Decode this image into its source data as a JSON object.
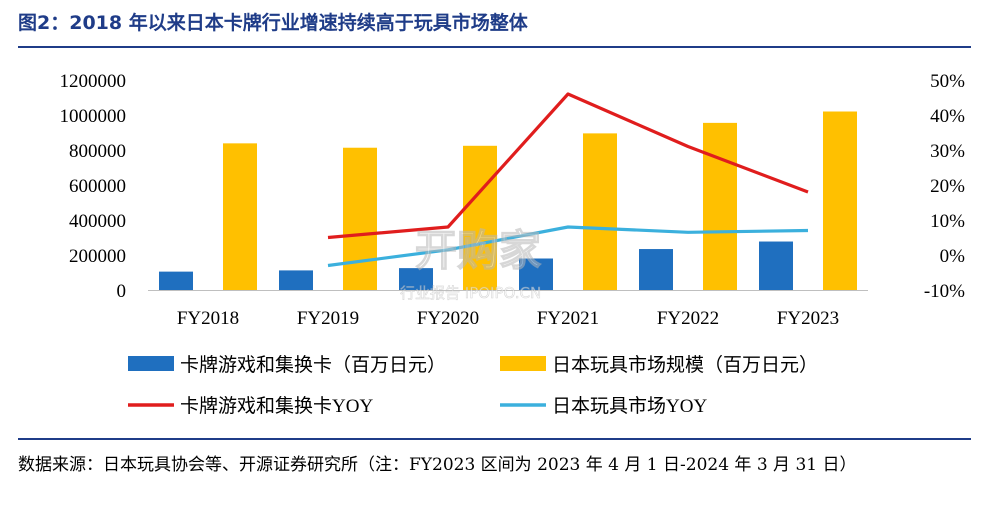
{
  "header": {
    "title": "图2：2018 年以来日本卡牌行业增速持续高于玩具市场整体"
  },
  "footer": {
    "source": "数据来源：日本玩具协会等、开源证券研究所（注：FY2023 区间为 2023 年 4 月 1 日-2024 年 3 月 31 日）"
  },
  "watermark": {
    "main": "开购家",
    "sub": "行业报告 IPOIPO.CN"
  },
  "colors": {
    "card_bar": "#1f6fbf",
    "toy_bar": "#ffc000",
    "card_yoy": "#e01d1d",
    "toy_yoy": "#3bb0dd"
  },
  "chart_data": {
    "type": "bar",
    "categories": [
      "FY2018",
      "FY2019",
      "FY2020",
      "FY2021",
      "FY2022",
      "FY2023"
    ],
    "series": [
      {
        "name": "卡牌游戏和集换卡（百万日元）",
        "type": "bar",
        "axis": "left",
        "values": [
          105000,
          112000,
          125000,
          180000,
          234000,
          277000
        ]
      },
      {
        "name": "日本玩具市场规模（百万日元）",
        "type": "bar",
        "axis": "left",
        "values": [
          838000,
          813000,
          824000,
          895000,
          955000,
          1020000
        ]
      },
      {
        "name": "卡牌游戏和集换卡YOY",
        "type": "line",
        "axis": "right",
        "values": [
          null,
          5.0,
          8.0,
          46.0,
          31.0,
          18.0
        ]
      },
      {
        "name": "日本玩具市场YOY",
        "type": "line",
        "axis": "right",
        "values": [
          null,
          -3.0,
          1.5,
          8.0,
          6.5,
          7.0
        ]
      }
    ],
    "y_left": {
      "ylim": [
        0,
        1200000
      ],
      "ticks": [
        "0",
        "200000",
        "400000",
        "600000",
        "800000",
        "1000000",
        "1200000"
      ]
    },
    "y_right": {
      "ylim": [
        -10,
        50
      ],
      "ticks": [
        "-10%",
        "0%",
        "10%",
        "20%",
        "30%",
        "40%",
        "50%"
      ]
    },
    "legend": "bottom"
  }
}
